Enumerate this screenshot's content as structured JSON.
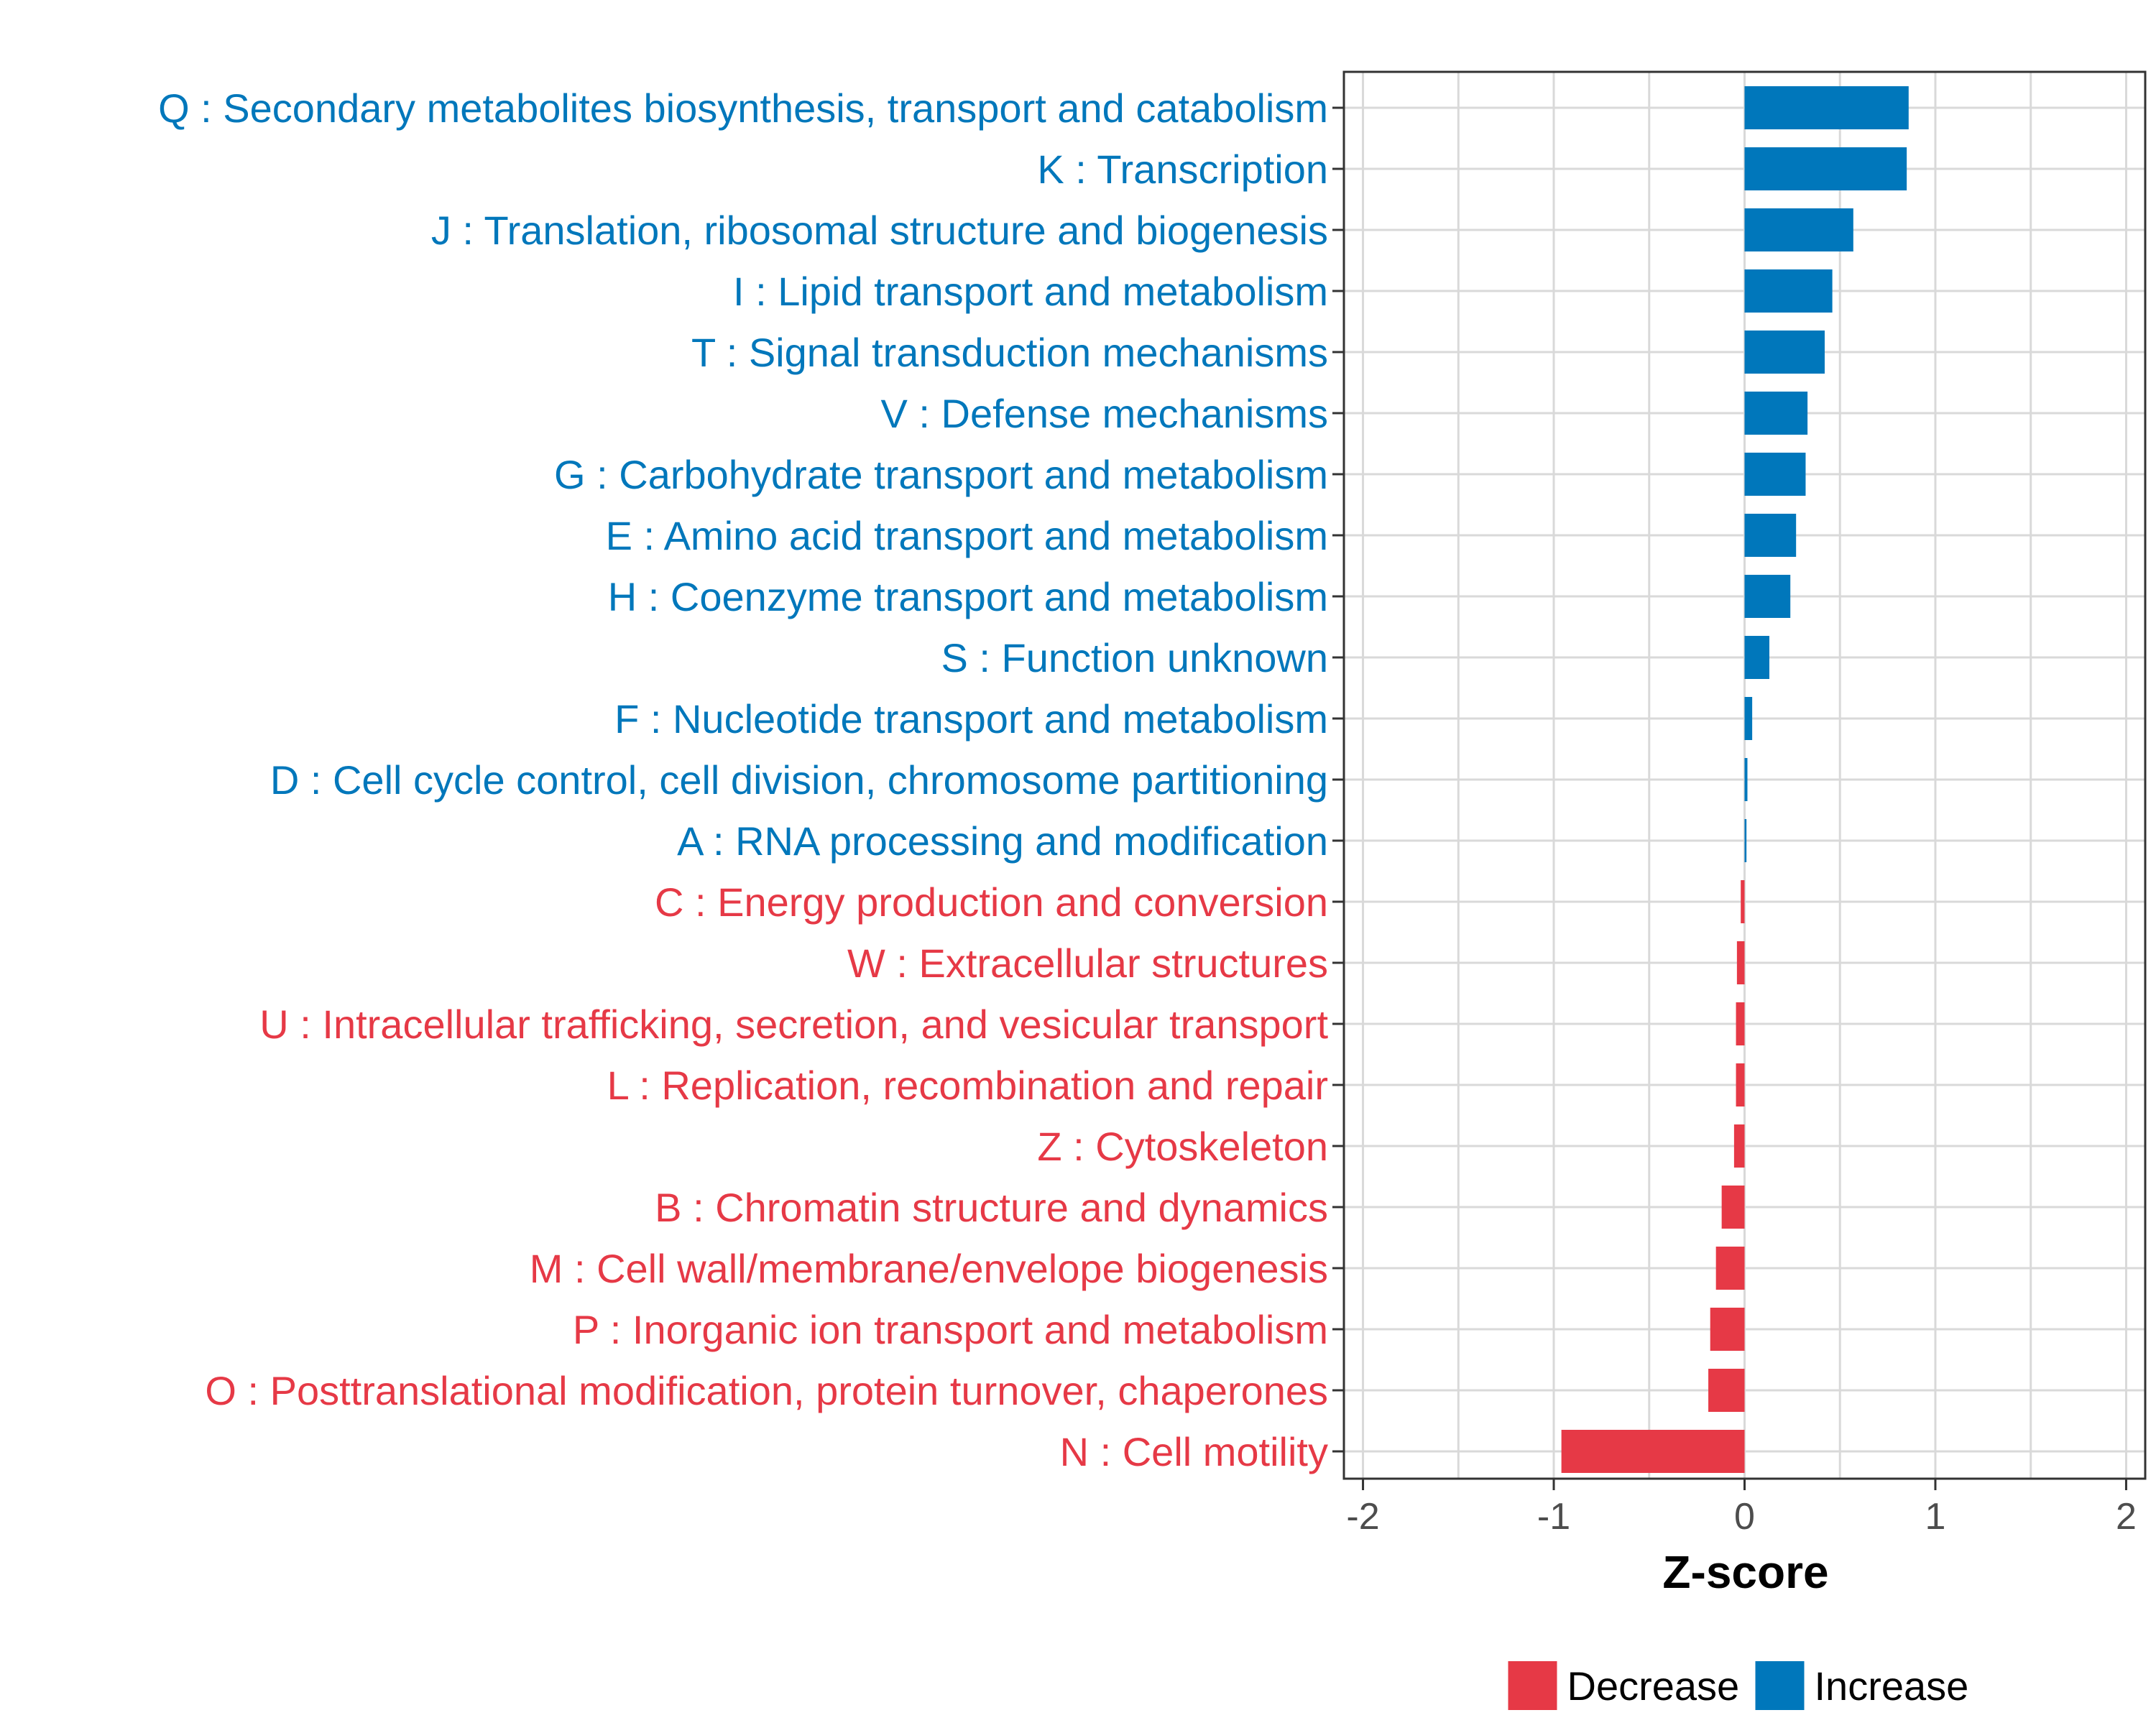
{
  "chart_data": {
    "type": "bar",
    "orientation": "horizontal",
    "title": "",
    "xlabel": "Z-score",
    "ylabel": "",
    "xlim": [
      -2.1,
      2.1
    ],
    "x_ticks": [
      -2,
      -1,
      0,
      1,
      2
    ],
    "x_tick_labels": [
      "-2",
      "-1",
      "0",
      "1",
      "2"
    ],
    "grid": true,
    "legend_position": "bottom",
    "colors": {
      "Decrease": "#E63946",
      "Increase": "#0077BB"
    },
    "categories": [
      "Q : Secondary metabolites biosynthesis, transport and catabolism",
      "K : Transcription",
      "J : Translation, ribosomal structure and biogenesis",
      "I : Lipid transport and metabolism",
      "T : Signal transduction mechanisms",
      "V : Defense mechanisms",
      "G : Carbohydrate transport and metabolism",
      "E : Amino acid transport and metabolism",
      "H : Coenzyme transport and metabolism",
      "S : Function unknown",
      "F : Nucleotide transport and metabolism",
      "D : Cell cycle control, cell division, chromosome partitioning",
      "A : RNA processing and modification",
      "C : Energy production and conversion",
      "W : Extracellular structures",
      "U : Intracellular trafficking, secretion, and vesicular transport",
      "L : Replication, recombination and repair",
      "Z : Cytoskeleton",
      "B : Chromatin structure and dynamics",
      "M : Cell wall/membrane/envelope biogenesis",
      "P : Inorganic ion transport and metabolism",
      "O : Posttranslational modification, protein turnover, chaperones",
      "N : Cell motility"
    ],
    "values": [
      0.86,
      0.85,
      0.57,
      0.46,
      0.42,
      0.33,
      0.32,
      0.27,
      0.24,
      0.13,
      0.04,
      0.015,
      0.01,
      -0.02,
      -0.04,
      -0.045,
      -0.045,
      -0.055,
      -0.12,
      -0.15,
      -0.18,
      -0.19,
      -0.96
    ],
    "groups": [
      "Increase",
      "Increase",
      "Increase",
      "Increase",
      "Increase",
      "Increase",
      "Increase",
      "Increase",
      "Increase",
      "Increase",
      "Increase",
      "Increase",
      "Increase",
      "Decrease",
      "Decrease",
      "Decrease",
      "Decrease",
      "Decrease",
      "Decrease",
      "Decrease",
      "Decrease",
      "Decrease",
      "Decrease"
    ],
    "legend": [
      "Decrease",
      "Increase"
    ]
  }
}
